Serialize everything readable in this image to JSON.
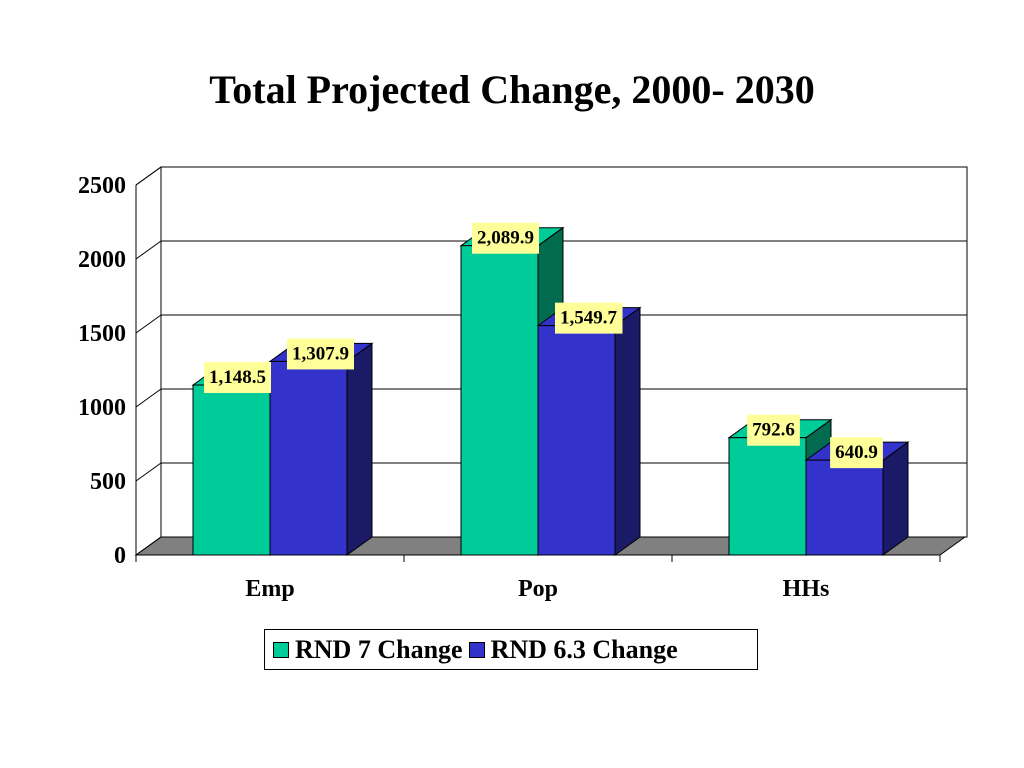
{
  "chart_data": {
    "type": "bar",
    "title": "Total Projected Change, 2000- 2030",
    "categories": [
      "Emp",
      "Pop",
      "HHs"
    ],
    "series": [
      {
        "name": "RND 7 Change",
        "values": [
          1148.5,
          2089.9,
          792.6
        ],
        "labels": [
          "1,148.5",
          "2,089.9",
          "792.6"
        ],
        "color": "#00cc99",
        "side_color": "#006b4f"
      },
      {
        "name": "RND 6.3 Change",
        "values": [
          1307.9,
          1549.7,
          640.9
        ],
        "labels": [
          "1,307.9",
          "1,549.7",
          "640.9"
        ],
        "color": "#3333cc",
        "side_color": "#1a1a66"
      }
    ],
    "ylim": [
      0,
      2500
    ],
    "yticks": [
      "0",
      "500",
      "1000",
      "1500",
      "2000",
      "2500"
    ],
    "grid": true,
    "legend_position": "bottom",
    "three_d": true,
    "colors": {
      "floor": "#808080",
      "label_bg": "#ffff99",
      "grid": "#000000"
    }
  }
}
